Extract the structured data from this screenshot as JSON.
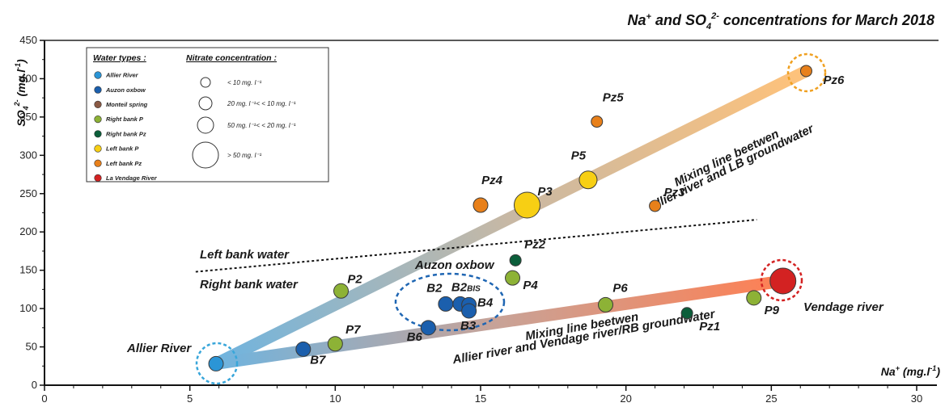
{
  "chart_data": {
    "type": "scatter",
    "title": "Na⁺ and SO₄²⁻ concentrations for March 2018",
    "title_parts": {
      "a": "Na",
      "a_sup": "+",
      "b": " and SO",
      "b_sub": "4",
      "b_sup": "2-",
      "c": " concentrations for March 2018"
    },
    "xlabel": "Na⁺ (mg.l⁻¹)",
    "xlabel_parts": {
      "a": "Na",
      "a_sup": "+",
      "b": " (mg.l",
      "b_sup": "-1",
      "c": ")"
    },
    "ylabel": "SO₄²⁻ (mg.l⁻¹)",
    "ylabel_parts": {
      "a": "SO",
      "a_sub": "4",
      "a_sup": "2-",
      "b": " (mg.l",
      "b_sup": "-1",
      "c": ")"
    },
    "xlim": [
      0,
      30
    ],
    "ylim": [
      0,
      450
    ],
    "xticks": [
      0,
      5,
      10,
      15,
      20,
      25,
      30
    ],
    "yticks": [
      0,
      50,
      100,
      150,
      200,
      250,
      300,
      350,
      400,
      450
    ],
    "grid": false,
    "legend_position": "top-left",
    "series": [
      {
        "name": "Allier River",
        "color": "#2b95d6",
        "points": [
          {
            "label": "",
            "x": 5.9,
            "y": 28,
            "nitrate_class": 1
          }
        ]
      },
      {
        "name": "Auzon oxbow",
        "color": "#1b5fad",
        "points": [
          {
            "label": "B7",
            "x": 8.9,
            "y": 47,
            "nitrate_class": 1
          },
          {
            "label": "B6",
            "x": 13.2,
            "y": 75,
            "nitrate_class": 1
          },
          {
            "label": "B2",
            "x": 13.8,
            "y": 106,
            "nitrate_class": 1
          },
          {
            "label": "B2BIS",
            "x": 14.3,
            "y": 106,
            "nitrate_class": 1
          },
          {
            "label": "B4",
            "x": 14.6,
            "y": 105,
            "nitrate_class": 1
          },
          {
            "label": "B3",
            "x": 14.6,
            "y": 97,
            "nitrate_class": 1
          }
        ]
      },
      {
        "name": "Monteil spring",
        "color": "#8a5a44",
        "points": []
      },
      {
        "name": "Right bank P",
        "color": "#8db236",
        "points": [
          {
            "label": "P2",
            "x": 10.2,
            "y": 123,
            "nitrate_class": 1
          },
          {
            "label": "P7",
            "x": 10.0,
            "y": 54,
            "nitrate_class": 1
          },
          {
            "label": "P4",
            "x": 16.1,
            "y": 140,
            "nitrate_class": 1
          },
          {
            "label": "P6",
            "x": 19.3,
            "y": 105,
            "nitrate_class": 1
          },
          {
            "label": "P9",
            "x": 24.4,
            "y": 114,
            "nitrate_class": 1
          }
        ]
      },
      {
        "name": "Right bank Pz",
        "color": "#0b5e3a",
        "points": [
          {
            "label": "Pz2",
            "x": 16.2,
            "y": 163,
            "nitrate_class": 0
          },
          {
            "label": "Pz1",
            "x": 22.1,
            "y": 94,
            "nitrate_class": 0
          }
        ]
      },
      {
        "name": "Left bank P",
        "color": "#f7cf14",
        "points": [
          {
            "label": "P3",
            "x": 16.6,
            "y": 235,
            "nitrate_class": 3
          },
          {
            "label": "P5",
            "x": 18.7,
            "y": 268,
            "nitrate_class": 2
          }
        ]
      },
      {
        "name": "Left bank Pz",
        "color": "#e8801a",
        "points": [
          {
            "label": "Pz4",
            "x": 15.0,
            "y": 235,
            "nitrate_class": 1
          },
          {
            "label": "Pz5",
            "x": 19.0,
            "y": 344,
            "nitrate_class": 0
          },
          {
            "label": "Pz3",
            "x": 21.0,
            "y": 234,
            "nitrate_class": 0
          },
          {
            "label": "Pz6",
            "x": 26.2,
            "y": 410,
            "nitrate_class": 0
          }
        ]
      },
      {
        "name": "La Vendage River",
        "color": "#d32222",
        "points": [
          {
            "label": "",
            "x": 25.4,
            "y": 136,
            "nitrate_class": 3
          }
        ]
      }
    ],
    "mixing_lines": [
      {
        "text": [
          "Mixing line beetwen",
          "Allier river and LB groundwater"
        ],
        "color": "#e8901a",
        "x": [
          5.9,
          26.2
        ],
        "y": [
          28,
          410
        ]
      },
      {
        "text": [
          "Mixing line beetwen",
          "Allier river and Vendage river/RB groundwater"
        ],
        "color": "#d9462a",
        "x": [
          5.9,
          25.4
        ],
        "y": [
          28,
          136
        ]
      }
    ],
    "separator": {
      "x": [
        5.2,
        24.5
      ],
      "y": [
        148,
        216
      ]
    },
    "region_labels": [
      {
        "text": "Left bank water",
        "color": "#f0a020"
      },
      {
        "text": "Right bank water",
        "color": "#1f8a3c"
      }
    ],
    "annotations": [
      {
        "text": "Allier River",
        "color": "#39a6da"
      },
      {
        "text": "Auzon oxbow",
        "color": "#1f66b3"
      },
      {
        "text": "Vendage river",
        "color": "#d32222"
      }
    ],
    "legend": {
      "water_types_title": "Water types :",
      "nitrate_title": "Nitrate concentration :",
      "nitrate_classes": [
        "< 10 mg. l⁻¹",
        "20 mg. l⁻¹< < 10 mg. l⁻¹",
        "50 mg. l⁻¹< < 20 mg. l⁻¹",
        "> 50 mg. l⁻¹"
      ]
    }
  }
}
